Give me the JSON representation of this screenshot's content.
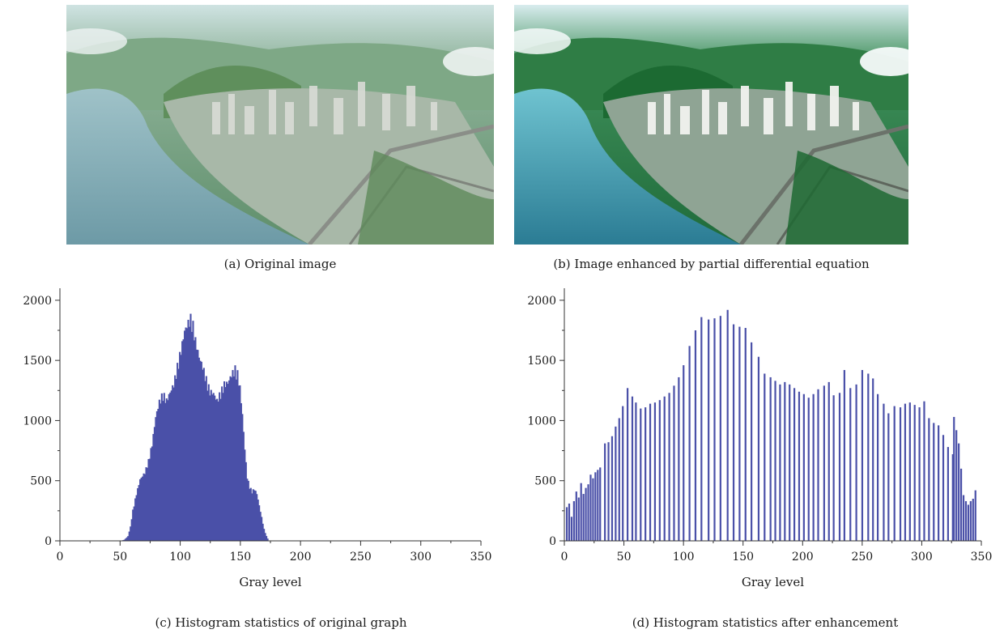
{
  "panels": {
    "a": {
      "caption": "(a) Original image"
    },
    "b": {
      "caption": "(b) Image enhanced by partial differential equation"
    },
    "c": {
      "caption": "(c) Histogram statistics of original graph"
    },
    "d": {
      "caption": "(d) Histogram statistics after enhancement"
    }
  },
  "colors": {
    "bar": "#4a50a8",
    "axis": "#333333"
  },
  "chart_data": [
    {
      "type": "bar",
      "xlabel": "Gray level",
      "ylabel": "",
      "xlim": [
        0,
        350
      ],
      "ylim": [
        0,
        2100
      ],
      "xticks": [
        0,
        50,
        100,
        150,
        200,
        250,
        300,
        350
      ],
      "yticks": [
        0,
        500,
        1000,
        1500,
        2000
      ],
      "grid": false,
      "envelope": [
        [
          50,
          0
        ],
        [
          53,
          10
        ],
        [
          56,
          40
        ],
        [
          58,
          120
        ],
        [
          60,
          260
        ],
        [
          63,
          400
        ],
        [
          66,
          520
        ],
        [
          70,
          580
        ],
        [
          73,
          680
        ],
        [
          76,
          820
        ],
        [
          79,
          1050
        ],
        [
          82,
          1180
        ],
        [
          85,
          1250
        ],
        [
          88,
          1190
        ],
        [
          91,
          1260
        ],
        [
          94,
          1330
        ],
        [
          97,
          1480
        ],
        [
          100,
          1620
        ],
        [
          103,
          1780
        ],
        [
          106,
          1850
        ],
        [
          108,
          1890
        ],
        [
          110,
          1830
        ],
        [
          112,
          1700
        ],
        [
          115,
          1560
        ],
        [
          118,
          1480
        ],
        [
          121,
          1370
        ],
        [
          124,
          1270
        ],
        [
          127,
          1250
        ],
        [
          130,
          1190
        ],
        [
          133,
          1260
        ],
        [
          136,
          1330
        ],
        [
          139,
          1340
        ],
        [
          142,
          1410
        ],
        [
          145,
          1460
        ],
        [
          147,
          1420
        ],
        [
          149,
          1300
        ],
        [
          151,
          1070
        ],
        [
          153,
          780
        ],
        [
          155,
          540
        ],
        [
          157,
          460
        ],
        [
          159,
          420
        ],
        [
          161,
          440
        ],
        [
          163,
          400
        ],
        [
          165,
          300
        ],
        [
          167,
          200
        ],
        [
          169,
          100
        ],
        [
          171,
          40
        ],
        [
          173,
          0
        ]
      ]
    },
    {
      "type": "bar",
      "xlabel": "Gray level",
      "ylabel": "",
      "xlim": [
        0,
        350
      ],
      "ylim": [
        0,
        2100
      ],
      "xticks": [
        0,
        50,
        100,
        150,
        200,
        250,
        300,
        350
      ],
      "yticks": [
        0,
        500,
        1000,
        1500,
        2000
      ],
      "grid": false,
      "bins": [
        [
          2,
          280
        ],
        [
          4,
          310
        ],
        [
          6,
          200
        ],
        [
          8,
          330
        ],
        [
          10,
          410
        ],
        [
          12,
          360
        ],
        [
          14,
          480
        ],
        [
          16,
          390
        ],
        [
          18,
          440
        ],
        [
          20,
          470
        ],
        [
          22,
          550
        ],
        [
          24,
          520
        ],
        [
          26,
          570
        ],
        [
          28,
          590
        ],
        [
          30,
          610
        ],
        [
          34,
          810
        ],
        [
          37,
          820
        ],
        [
          40,
          870
        ],
        [
          43,
          950
        ],
        [
          46,
          1020
        ],
        [
          49,
          1120
        ],
        [
          53,
          1270
        ],
        [
          57,
          1200
        ],
        [
          60,
          1150
        ],
        [
          64,
          1100
        ],
        [
          68,
          1110
        ],
        [
          72,
          1140
        ],
        [
          76,
          1150
        ],
        [
          80,
          1170
        ],
        [
          84,
          1200
        ],
        [
          88,
          1230
        ],
        [
          92,
          1290
        ],
        [
          96,
          1360
        ],
        [
          100,
          1460
        ],
        [
          105,
          1620
        ],
        [
          110,
          1750
        ],
        [
          115,
          1860
        ],
        [
          121,
          1840
        ],
        [
          126,
          1850
        ],
        [
          131,
          1870
        ],
        [
          137,
          1920
        ],
        [
          142,
          1800
        ],
        [
          147,
          1780
        ],
        [
          152,
          1770
        ],
        [
          157,
          1650
        ],
        [
          163,
          1530
        ],
        [
          168,
          1390
        ],
        [
          173,
          1360
        ],
        [
          177,
          1330
        ],
        [
          181,
          1300
        ],
        [
          185,
          1320
        ],
        [
          189,
          1300
        ],
        [
          193,
          1270
        ],
        [
          197,
          1240
        ],
        [
          201,
          1220
        ],
        [
          205,
          1190
        ],
        [
          209,
          1220
        ],
        [
          213,
          1260
        ],
        [
          218,
          1290
        ],
        [
          222,
          1320
        ],
        [
          226,
          1210
        ],
        [
          231,
          1230
        ],
        [
          235,
          1420
        ],
        [
          240,
          1270
        ],
        [
          245,
          1300
        ],
        [
          250,
          1420
        ],
        [
          255,
          1390
        ],
        [
          259,
          1350
        ],
        [
          263,
          1220
        ],
        [
          268,
          1140
        ],
        [
          272,
          1060
        ],
        [
          277,
          1120
        ],
        [
          282,
          1110
        ],
        [
          286,
          1140
        ],
        [
          290,
          1150
        ],
        [
          294,
          1130
        ],
        [
          298,
          1110
        ],
        [
          302,
          1160
        ],
        [
          306,
          1020
        ],
        [
          310,
          980
        ],
        [
          314,
          960
        ],
        [
          318,
          880
        ],
        [
          322,
          780
        ],
        [
          326,
          720
        ],
        [
          327,
          1030
        ],
        [
          329,
          920
        ],
        [
          331,
          810
        ],
        [
          333,
          600
        ],
        [
          335,
          380
        ],
        [
          337,
          330
        ],
        [
          339,
          300
        ],
        [
          341,
          330
        ],
        [
          343,
          350
        ],
        [
          345,
          420
        ]
      ]
    }
  ]
}
